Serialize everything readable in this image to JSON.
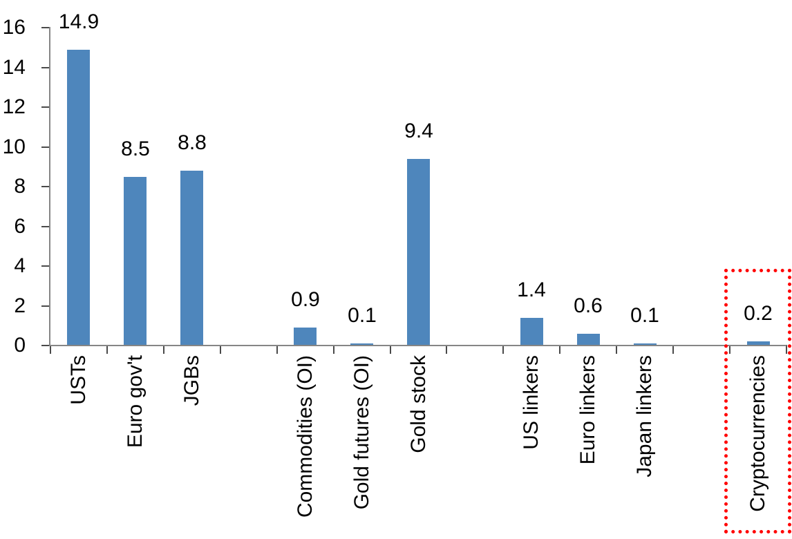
{
  "chart_data": {
    "type": "bar",
    "title": "",
    "categories": [
      "USTs",
      "Euro gov't",
      "JGBs",
      "",
      "Commodities (OI)",
      "Gold futures (OI)",
      "Gold stock",
      "",
      "US linkers",
      "Euro linkers",
      "Japan linkers",
      "",
      "Cryptocurrencies"
    ],
    "values": [
      14.9,
      8.5,
      8.8,
      null,
      0.9,
      0.1,
      9.4,
      null,
      1.4,
      0.6,
      0.1,
      null,
      0.2
    ],
    "data_labels": [
      "14.9",
      "8.5",
      "8.8",
      null,
      "0.9",
      "0.1",
      "9.4",
      null,
      "1.4",
      "0.6",
      "0.1",
      null,
      "0.2"
    ],
    "y_ticks": [
      0,
      2,
      4,
      6,
      8,
      10,
      12,
      14,
      16
    ],
    "ylim": [
      0,
      16
    ],
    "grid": "off",
    "legend": "none",
    "bar_color": "#4E86BC",
    "axis_color": "#858585",
    "tick_color": "#4A4A4A",
    "label_color": "#000000",
    "highlight": {
      "category": "Cryptocurrencies",
      "style": "dotted-box",
      "color": "#FF0000"
    }
  }
}
